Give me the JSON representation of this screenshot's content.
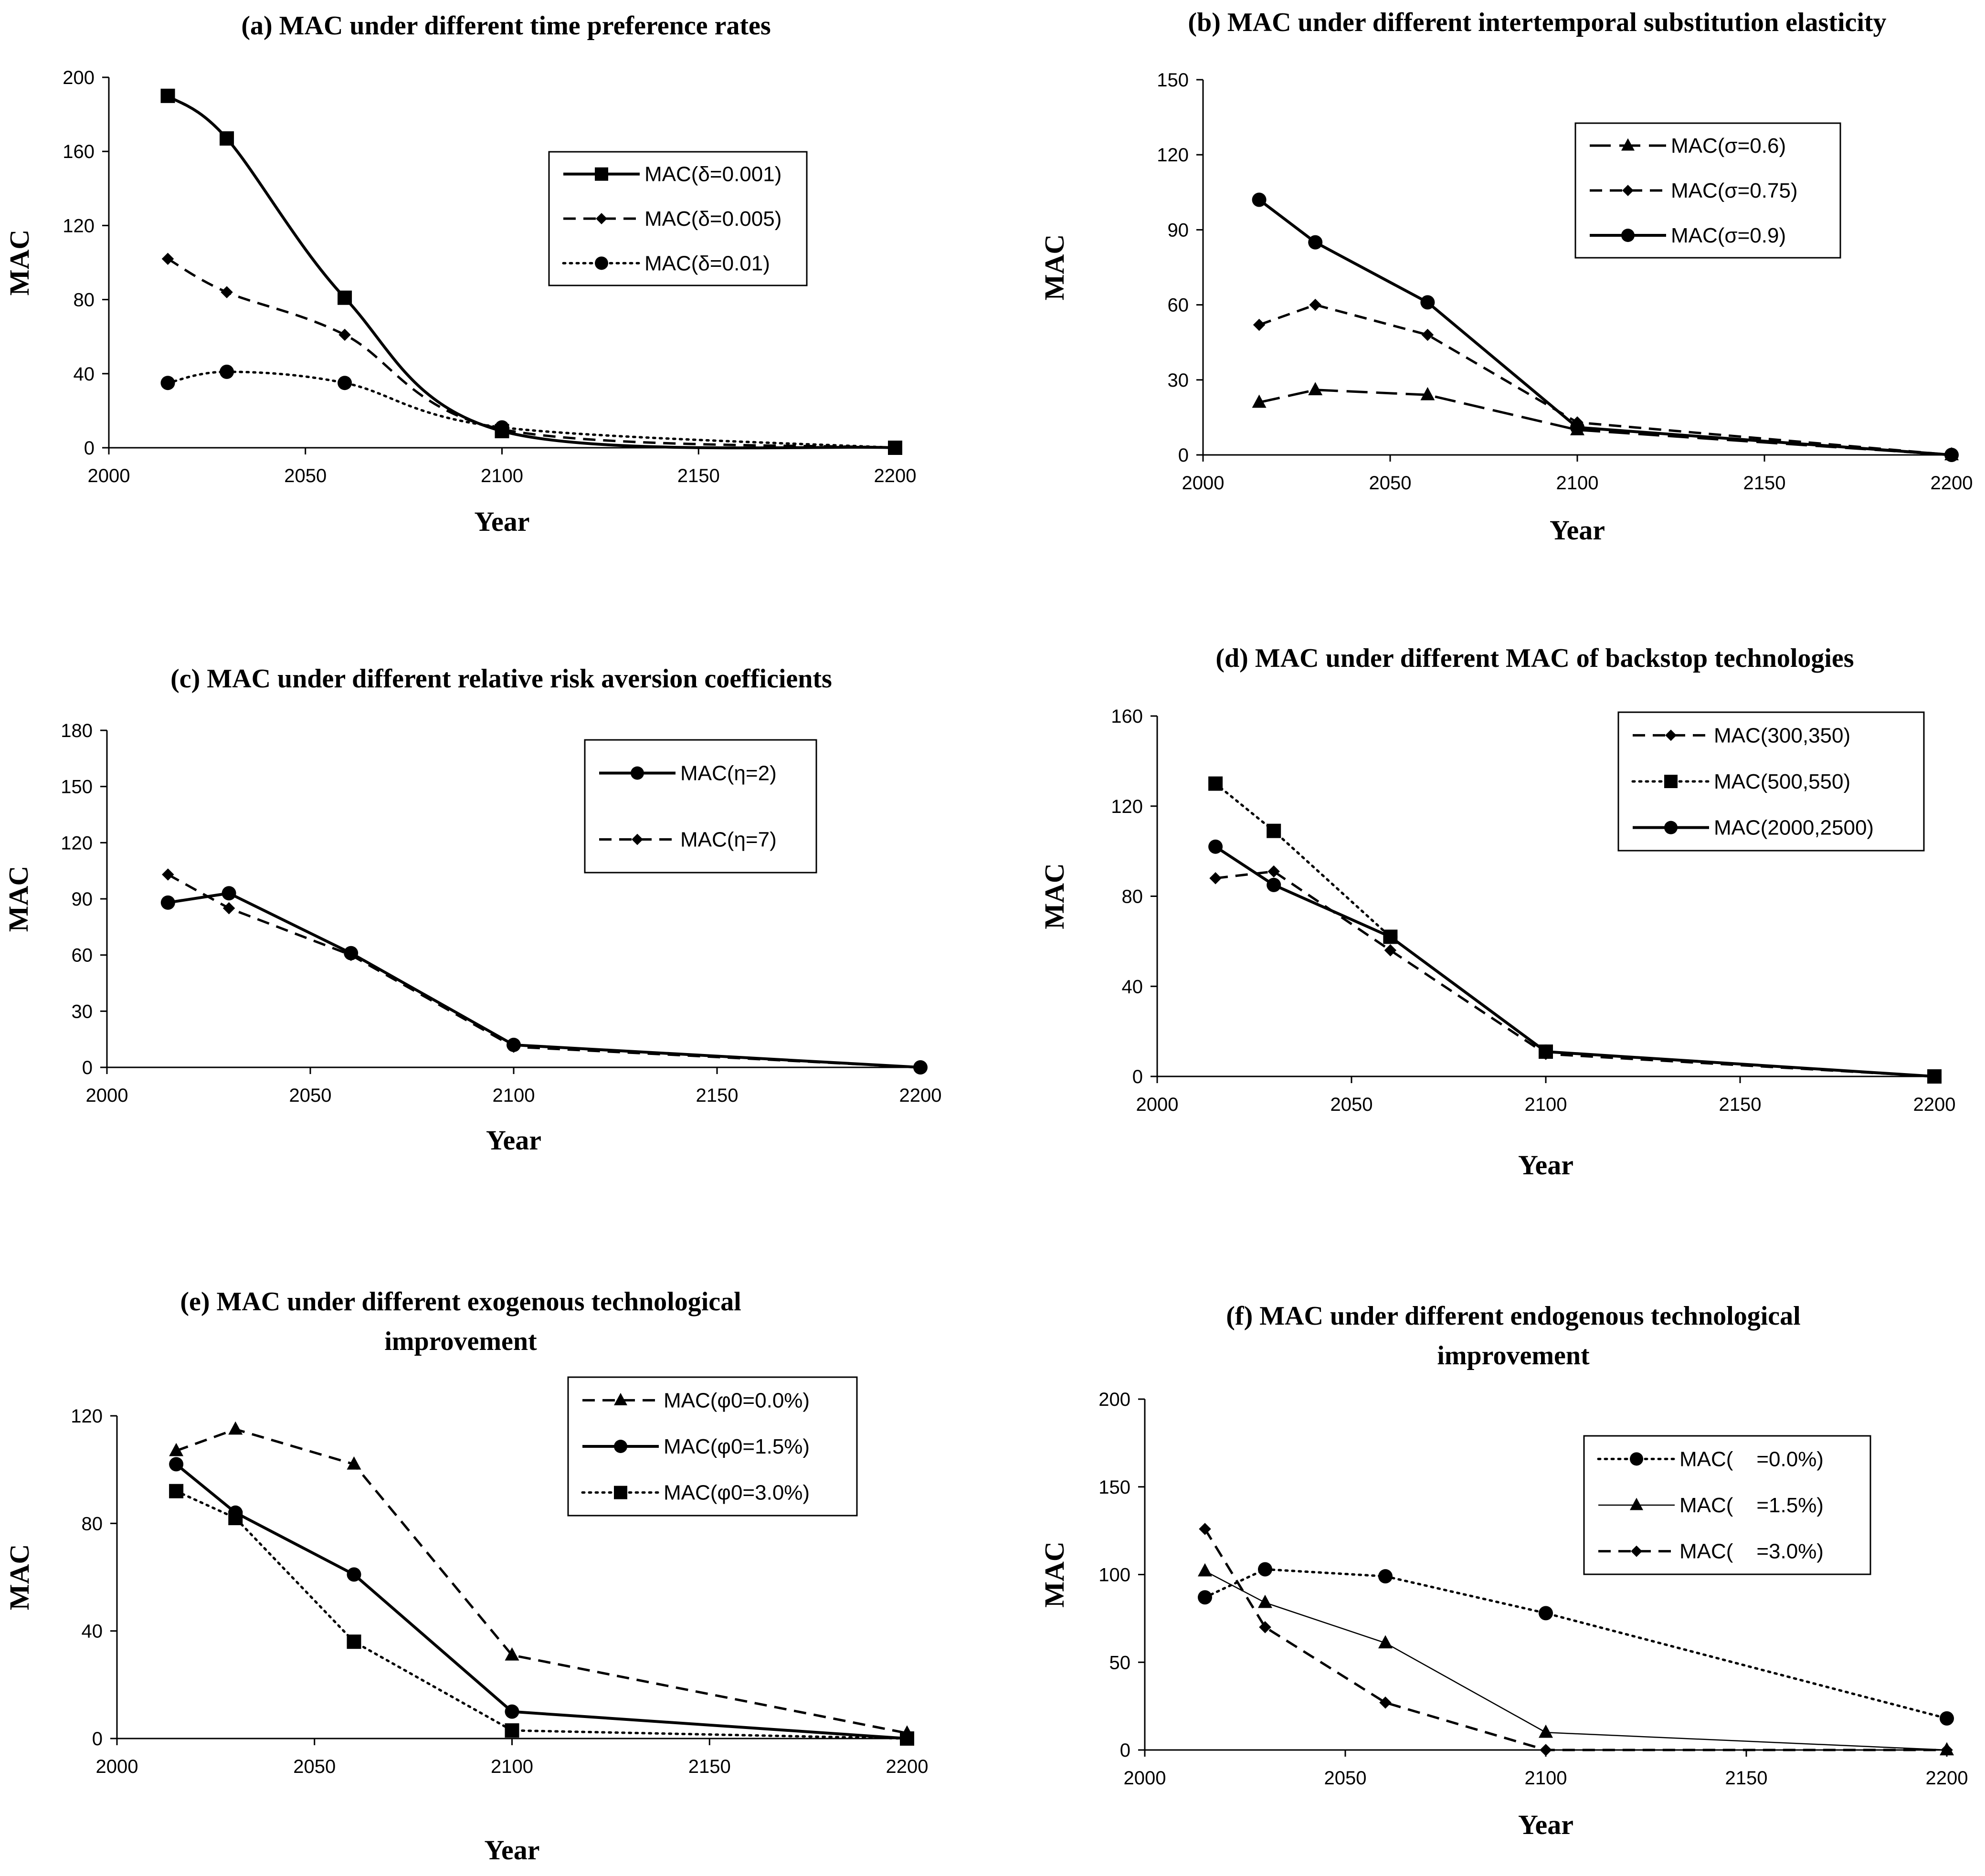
{
  "chart_data": [
    {
      "id": "a",
      "type": "line",
      "title_lines": [
        "(a) MAC under different time preference rates"
      ],
      "xlabel": "Year",
      "ylabel": "MAC",
      "xlim": [
        2000,
        2200
      ],
      "ylim": [
        0,
        200
      ],
      "xticks": [
        2000,
        2050,
        2100,
        2150,
        2200
      ],
      "yticks": [
        0,
        40,
        80,
        120,
        160,
        200
      ],
      "legend_position": "upper-right",
      "series": [
        {
          "name": "MAC(δ=0.001)",
          "style": "solid",
          "marker": "square",
          "smooth": true,
          "x": [
            2015,
            2030,
            2060,
            2100,
            2200
          ],
          "values": [
            190,
            167,
            81,
            9,
            0
          ]
        },
        {
          "name": "MAC(δ=0.005)",
          "style": "dashed",
          "marker": "diamond",
          "smooth": true,
          "x": [
            2015,
            2030,
            2060,
            2100,
            2200
          ],
          "values": [
            102,
            84,
            61,
            10,
            0
          ]
        },
        {
          "name": "MAC(δ=0.01)",
          "style": "dotted",
          "marker": "circle",
          "smooth": true,
          "x": [
            2015,
            2030,
            2060,
            2100,
            2200
          ],
          "values": [
            35,
            41,
            35,
            11,
            0
          ]
        }
      ]
    },
    {
      "id": "b",
      "type": "line",
      "title_lines": [
        "(b) MAC under different intertemporal substitution elasticity"
      ],
      "xlabel": "Year",
      "ylabel": "MAC",
      "xlim": [
        2000,
        2200
      ],
      "ylim": [
        0,
        150
      ],
      "xticks": [
        2000,
        2050,
        2100,
        2150,
        2200
      ],
      "yticks": [
        0,
        30,
        60,
        90,
        120,
        150
      ],
      "legend_position": "upper-center",
      "series": [
        {
          "name": "MAC(σ=0.6)",
          "style": "longdash",
          "marker": "triangle",
          "smooth": false,
          "x": [
            2015,
            2030,
            2060,
            2100,
            2200
          ],
          "values": [
            21,
            26,
            24,
            10,
            0
          ]
        },
        {
          "name": "MAC(σ=0.75)",
          "style": "dashed",
          "marker": "diamond",
          "smooth": false,
          "x": [
            2015,
            2030,
            2060,
            2100,
            2200
          ],
          "values": [
            52,
            60,
            48,
            13,
            0
          ]
        },
        {
          "name": "MAC(σ=0.9)",
          "style": "solid",
          "marker": "circle",
          "smooth": false,
          "x": [
            2015,
            2030,
            2060,
            2100,
            2200
          ],
          "values": [
            102,
            85,
            61,
            11,
            0
          ]
        }
      ]
    },
    {
      "id": "c",
      "type": "line",
      "title_lines": [
        "(c) MAC under different relative risk aversion coefficients"
      ],
      "xlabel": "Year",
      "ylabel": "MAC",
      "xlim": [
        2000,
        2200
      ],
      "ylim": [
        0,
        180
      ],
      "xticks": [
        2000,
        2050,
        2100,
        2150,
        2200
      ],
      "yticks": [
        0,
        30,
        60,
        90,
        120,
        150,
        180
      ],
      "legend_position": "upper-right",
      "series": [
        {
          "name": "MAC(η=2)",
          "style": "solid",
          "marker": "circle",
          "smooth": false,
          "x": [
            2015,
            2030,
            2060,
            2100,
            2200
          ],
          "values": [
            88,
            93,
            61,
            12,
            0
          ]
        },
        {
          "name": "MAC(η=7)",
          "style": "dashed",
          "marker": "diamond",
          "smooth": false,
          "x": [
            2015,
            2030,
            2060,
            2100,
            2200
          ],
          "values": [
            103,
            85,
            60,
            11,
            0
          ]
        }
      ]
    },
    {
      "id": "d",
      "type": "line",
      "title_lines": [
        "(d) MAC under different MAC of backstop technologies"
      ],
      "xlabel": "Year",
      "ylabel": "MAC",
      "xlim": [
        2000,
        2200
      ],
      "ylim": [
        0,
        160
      ],
      "xticks": [
        2000,
        2050,
        2100,
        2150,
        2200
      ],
      "yticks": [
        0,
        40,
        80,
        120,
        160
      ],
      "legend_position": "upper-right",
      "series": [
        {
          "name": "MAC(300,350)",
          "style": "dashed",
          "marker": "diamond",
          "smooth": false,
          "x": [
            2015,
            2030,
            2060,
            2100,
            2200
          ],
          "values": [
            88,
            91,
            56,
            10,
            0
          ]
        },
        {
          "name": "MAC(500,550)",
          "style": "dotted",
          "marker": "square",
          "smooth": false,
          "x": [
            2015,
            2030,
            2060,
            2100,
            2200
          ],
          "values": [
            130,
            109,
            62,
            11,
            0
          ]
        },
        {
          "name": "MAC(2000,2500)",
          "style": "solid",
          "marker": "circle",
          "smooth": false,
          "x": [
            2015,
            2030,
            2060,
            2100,
            2200
          ],
          "values": [
            102,
            85,
            62,
            11,
            0
          ]
        }
      ]
    },
    {
      "id": "e",
      "type": "line",
      "title_lines": [
        "(e) MAC under different exogenous technological",
        "improvement"
      ],
      "xlabel": "Year",
      "ylabel": "MAC",
      "xlim": [
        2000,
        2200
      ],
      "ylim": [
        0,
        120
      ],
      "xticks": [
        2000,
        2050,
        2100,
        2150,
        2200
      ],
      "yticks": [
        0,
        40,
        80,
        120
      ],
      "legend_position": "upper-right",
      "series": [
        {
          "name": "MAC(φ0=0.0%)",
          "style": "dashed",
          "marker": "triangle",
          "smooth": false,
          "x": [
            2015,
            2030,
            2060,
            2100,
            2200
          ],
          "values": [
            107,
            115,
            102,
            31,
            2
          ]
        },
        {
          "name": "MAC(φ0=1.5%)",
          "style": "solid",
          "marker": "circle",
          "smooth": false,
          "x": [
            2015,
            2030,
            2060,
            2100,
            2200
          ],
          "values": [
            102,
            84,
            61,
            10,
            0
          ]
        },
        {
          "name": "MAC(φ0=3.0%)",
          "style": "dotted",
          "marker": "square",
          "smooth": false,
          "x": [
            2015,
            2030,
            2060,
            2100,
            2200
          ],
          "values": [
            92,
            82,
            36,
            3,
            0
          ]
        }
      ]
    },
    {
      "id": "f",
      "type": "line",
      "title_lines": [
        "(f) MAC under different endogenous technological",
        "improvement"
      ],
      "xlabel": "Year",
      "ylabel": "MAC",
      "xlim": [
        2000,
        2200
      ],
      "ylim": [
        0,
        200
      ],
      "xticks": [
        2000,
        2050,
        2100,
        2150,
        2200
      ],
      "yticks": [
        0,
        50,
        100,
        150,
        200
      ],
      "legend_position": "upper-center",
      "series": [
        {
          "name": "MAC(    =0.0%)",
          "style": "dotted",
          "marker": "circle",
          "smooth": false,
          "x": [
            2015,
            2030,
            2060,
            2100,
            2200
          ],
          "values": [
            87,
            103,
            99,
            78,
            18
          ]
        },
        {
          "name": "MAC(    =1.5%)",
          "style": "thin",
          "marker": "triangle",
          "smooth": false,
          "x": [
            2015,
            2030,
            2060,
            2100,
            2200
          ],
          "values": [
            102,
            84,
            61,
            10,
            0
          ]
        },
        {
          "name": "MAC(    =3.0%)",
          "style": "dashed",
          "marker": "diamond",
          "smooth": false,
          "x": [
            2015,
            2030,
            2060,
            2100,
            2200
          ],
          "values": [
            126,
            70,
            27,
            0,
            0
          ]
        }
      ]
    }
  ]
}
